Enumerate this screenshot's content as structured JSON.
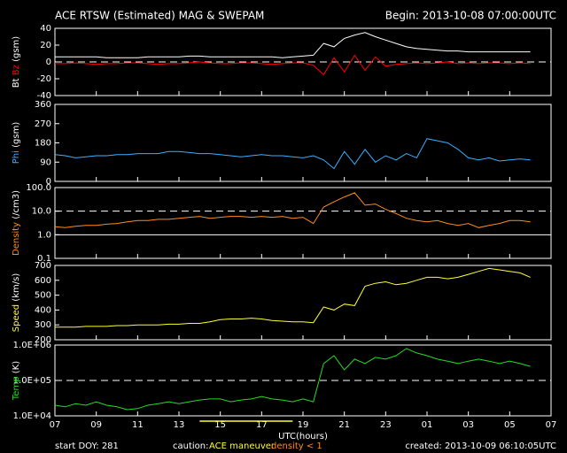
{
  "chart_data": {
    "type": "line",
    "title": "ACE RTSW (Estimated) MAG & SWEPAM",
    "subtitle": "Begin: 2013-10-08 07:00:00UTC",
    "xlabel": "UTC(hours)",
    "xlim": [
      0,
      24
    ],
    "xticks": [
      {
        "value": 0,
        "label": "07"
      },
      {
        "value": 2,
        "label": "09"
      },
      {
        "value": 4,
        "label": "11"
      },
      {
        "value": 6,
        "label": "13"
      },
      {
        "value": 8,
        "label": "15"
      },
      {
        "value": 10,
        "label": "17"
      },
      {
        "value": 12,
        "label": "19"
      },
      {
        "value": 14,
        "label": "21"
      },
      {
        "value": 16,
        "label": "23"
      },
      {
        "value": 18,
        "label": "01"
      },
      {
        "value": 20,
        "label": "03"
      },
      {
        "value": 22,
        "label": "05"
      },
      {
        "value": 24,
        "label": "07"
      }
    ],
    "x": [
      0,
      0.5,
      1,
      1.5,
      2,
      2.5,
      3,
      3.5,
      4,
      4.5,
      5,
      5.5,
      6,
      6.5,
      7,
      7.5,
      8,
      8.5,
      9,
      9.5,
      10,
      10.5,
      11,
      11.5,
      12,
      12.5,
      13,
      13.5,
      14,
      14.5,
      15,
      15.5,
      16,
      16.5,
      17,
      17.5,
      18,
      18.5,
      19,
      19.5,
      20,
      20.5,
      21,
      21.5,
      22,
      22.5,
      23
    ],
    "maneuver": [
      7,
      11.5
    ],
    "maneuver_color": "#ffff33",
    "panels": [
      {
        "ylabel": "(gsm)",
        "ylim": [
          -40,
          40
        ],
        "yticks": [
          -40,
          -20,
          0,
          20,
          40
        ],
        "log": false,
        "dashed_lines": [
          0
        ],
        "series": [
          {
            "name": "Bt",
            "color": "#ffffff",
            "values": [
              6,
              6,
              6,
              6,
              6,
              5,
              5,
              5,
              5,
              6,
              6,
              6,
              6,
              7,
              7,
              6,
              6,
              6,
              6,
              6,
              6,
              6,
              5,
              6,
              7,
              8,
              22,
              18,
              28,
              32,
              35,
              30,
              26,
              22,
              18,
              16,
              15,
              14,
              13,
              13,
              12,
              12,
              12,
              12,
              12,
              12,
              12
            ]
          },
          {
            "name": "Bz",
            "color": "#ff0000",
            "values": [
              -2,
              -2,
              -1,
              -2,
              -3,
              -2,
              -2,
              -1,
              -1,
              -2,
              -3,
              -2,
              -2,
              -1,
              0,
              -1,
              -2,
              -2,
              -1,
              -1,
              -2,
              -3,
              -2,
              -1,
              -1,
              -4,
              -15,
              5,
              -12,
              8,
              -10,
              6,
              -5,
              -3,
              -2,
              -1,
              -2,
              -1,
              0,
              -2,
              -1,
              -2,
              -1,
              -1,
              -2,
              -1,
              -2
            ]
          }
        ]
      },
      {
        "ylabel": "(gsm)",
        "ylim": [
          0,
          360
        ],
        "yticks": [
          0,
          90,
          180,
          270,
          360
        ],
        "log": false,
        "series": [
          {
            "name": "Phi",
            "color": "#3ab0ff",
            "values": [
              125,
              120,
              110,
              115,
              120,
              120,
              125,
              125,
              130,
              130,
              130,
              140,
              140,
              135,
              130,
              130,
              125,
              120,
              115,
              120,
              125,
              120,
              120,
              115,
              110,
              120,
              100,
              60,
              140,
              80,
              150,
              90,
              120,
              100,
              130,
              110,
              200,
              190,
              180,
              150,
              110,
              100,
              110,
              95,
              100,
              105,
              100
            ]
          }
        ]
      },
      {
        "ylabel": "(/cm3)",
        "ylim": [
          0.1,
          100
        ],
        "yticks": [
          0.1,
          {
            "value": 1,
            "label": "1.0"
          },
          {
            "value": 10,
            "label": "10.0"
          },
          {
            "value": 100,
            "label": "100.0"
          }
        ],
        "log": true,
        "dashed_lines": [
          10
        ],
        "solid_lines": [
          1
        ],
        "series": [
          {
            "name": "Density",
            "color": "#ff8c1a",
            "values": [
              2.2,
              2.0,
              2.3,
              2.5,
              2.5,
              2.8,
              3.0,
              3.5,
              4.0,
              4.0,
              4.5,
              4.5,
              5.0,
              5.5,
              6.0,
              5.0,
              5.5,
              6.0,
              6.0,
              5.5,
              6.0,
              5.5,
              6.0,
              5.0,
              5.5,
              3.0,
              15,
              25,
              40,
              60,
              18,
              20,
              12,
              8,
              5,
              4,
              3.5,
              4,
              3,
              2.5,
              3,
              2,
              2.5,
              3,
              4,
              4,
              3.5
            ]
          }
        ]
      },
      {
        "ylabel": "(km/s)",
        "ylim": [
          200,
          700
        ],
        "yticks": [
          200,
          300,
          400,
          500,
          600,
          700
        ],
        "log": false,
        "series": [
          {
            "name": "Speed",
            "color": "#ffff33",
            "values": [
              285,
              285,
              285,
              290,
              290,
              290,
              295,
              295,
              300,
              300,
              300,
              305,
              305,
              310,
              310,
              320,
              335,
              340,
              340,
              345,
              340,
              330,
              325,
              320,
              320,
              315,
              420,
              400,
              440,
              430,
              560,
              580,
              590,
              570,
              580,
              600,
              620,
              620,
              610,
              620,
              640,
              660,
              680,
              670,
              660,
              650,
              620
            ]
          }
        ]
      },
      {
        "ylabel": "(K)",
        "ylim": [
          10000,
          1000000
        ],
        "yticks": [
          {
            "value": 10000,
            "label": "1.0E+04"
          },
          {
            "value": 100000,
            "label": "1.0E+05"
          },
          {
            "value": 1000000,
            "label": "1.0E+06"
          }
        ],
        "log": true,
        "dashed_lines": [
          100000
        ],
        "series": [
          {
            "name": "Temp",
            "color": "#22dd22",
            "values": [
              20000,
              18000,
              22000,
              20000,
              25000,
              20000,
              18000,
              15000,
              16000,
              20000,
              22000,
              25000,
              22000,
              25000,
              28000,
              30000,
              30000,
              25000,
              28000,
              30000,
              35000,
              30000,
              28000,
              25000,
              30000,
              25000,
              300000,
              500000,
              200000,
              400000,
              300000,
              450000,
              400000,
              500000,
              800000,
              600000,
              500000,
              400000,
              350000,
              300000,
              350000,
              400000,
              350000,
              300000,
              350000,
              300000,
              250000
            ]
          }
        ]
      }
    ]
  },
  "footer": {
    "start": "start DOY: 281",
    "caution": "caution:",
    "maneuver": "ACE maneuver",
    "density": "density < 1",
    "created": "created: 2013-10-09 06:10:05UTC"
  }
}
